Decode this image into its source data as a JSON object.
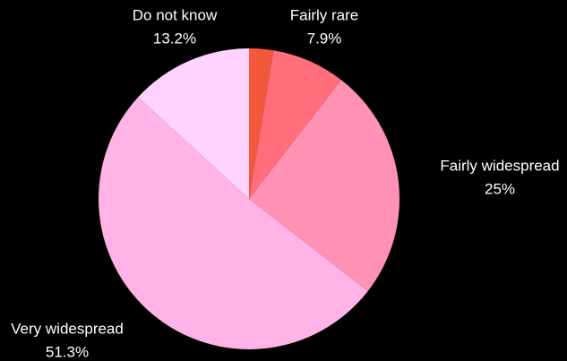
{
  "chart_data": {
    "type": "pie",
    "start_angle": "12 o'clock",
    "direction": "clockwise",
    "slices": [
      {
        "label": "",
        "value": 2.6,
        "value_label": "",
        "color": "#f4583a"
      },
      {
        "label": "Fairly rare",
        "value": 7.9,
        "value_label": "7.9%",
        "color": "#ff6e7a"
      },
      {
        "label": "Fairly widespread",
        "value": 25,
        "value_label": "25%",
        "color": "#ff91b4"
      },
      {
        "label": "Very widespread",
        "value": 51.3,
        "value_label": "51.3%",
        "color": "#ffb3e6"
      },
      {
        "label": "Do not know",
        "value": 13.2,
        "value_label": "13.2%",
        "color": "#ffd3ff"
      }
    ],
    "background": "#000000",
    "label_color": "#ffffff"
  }
}
